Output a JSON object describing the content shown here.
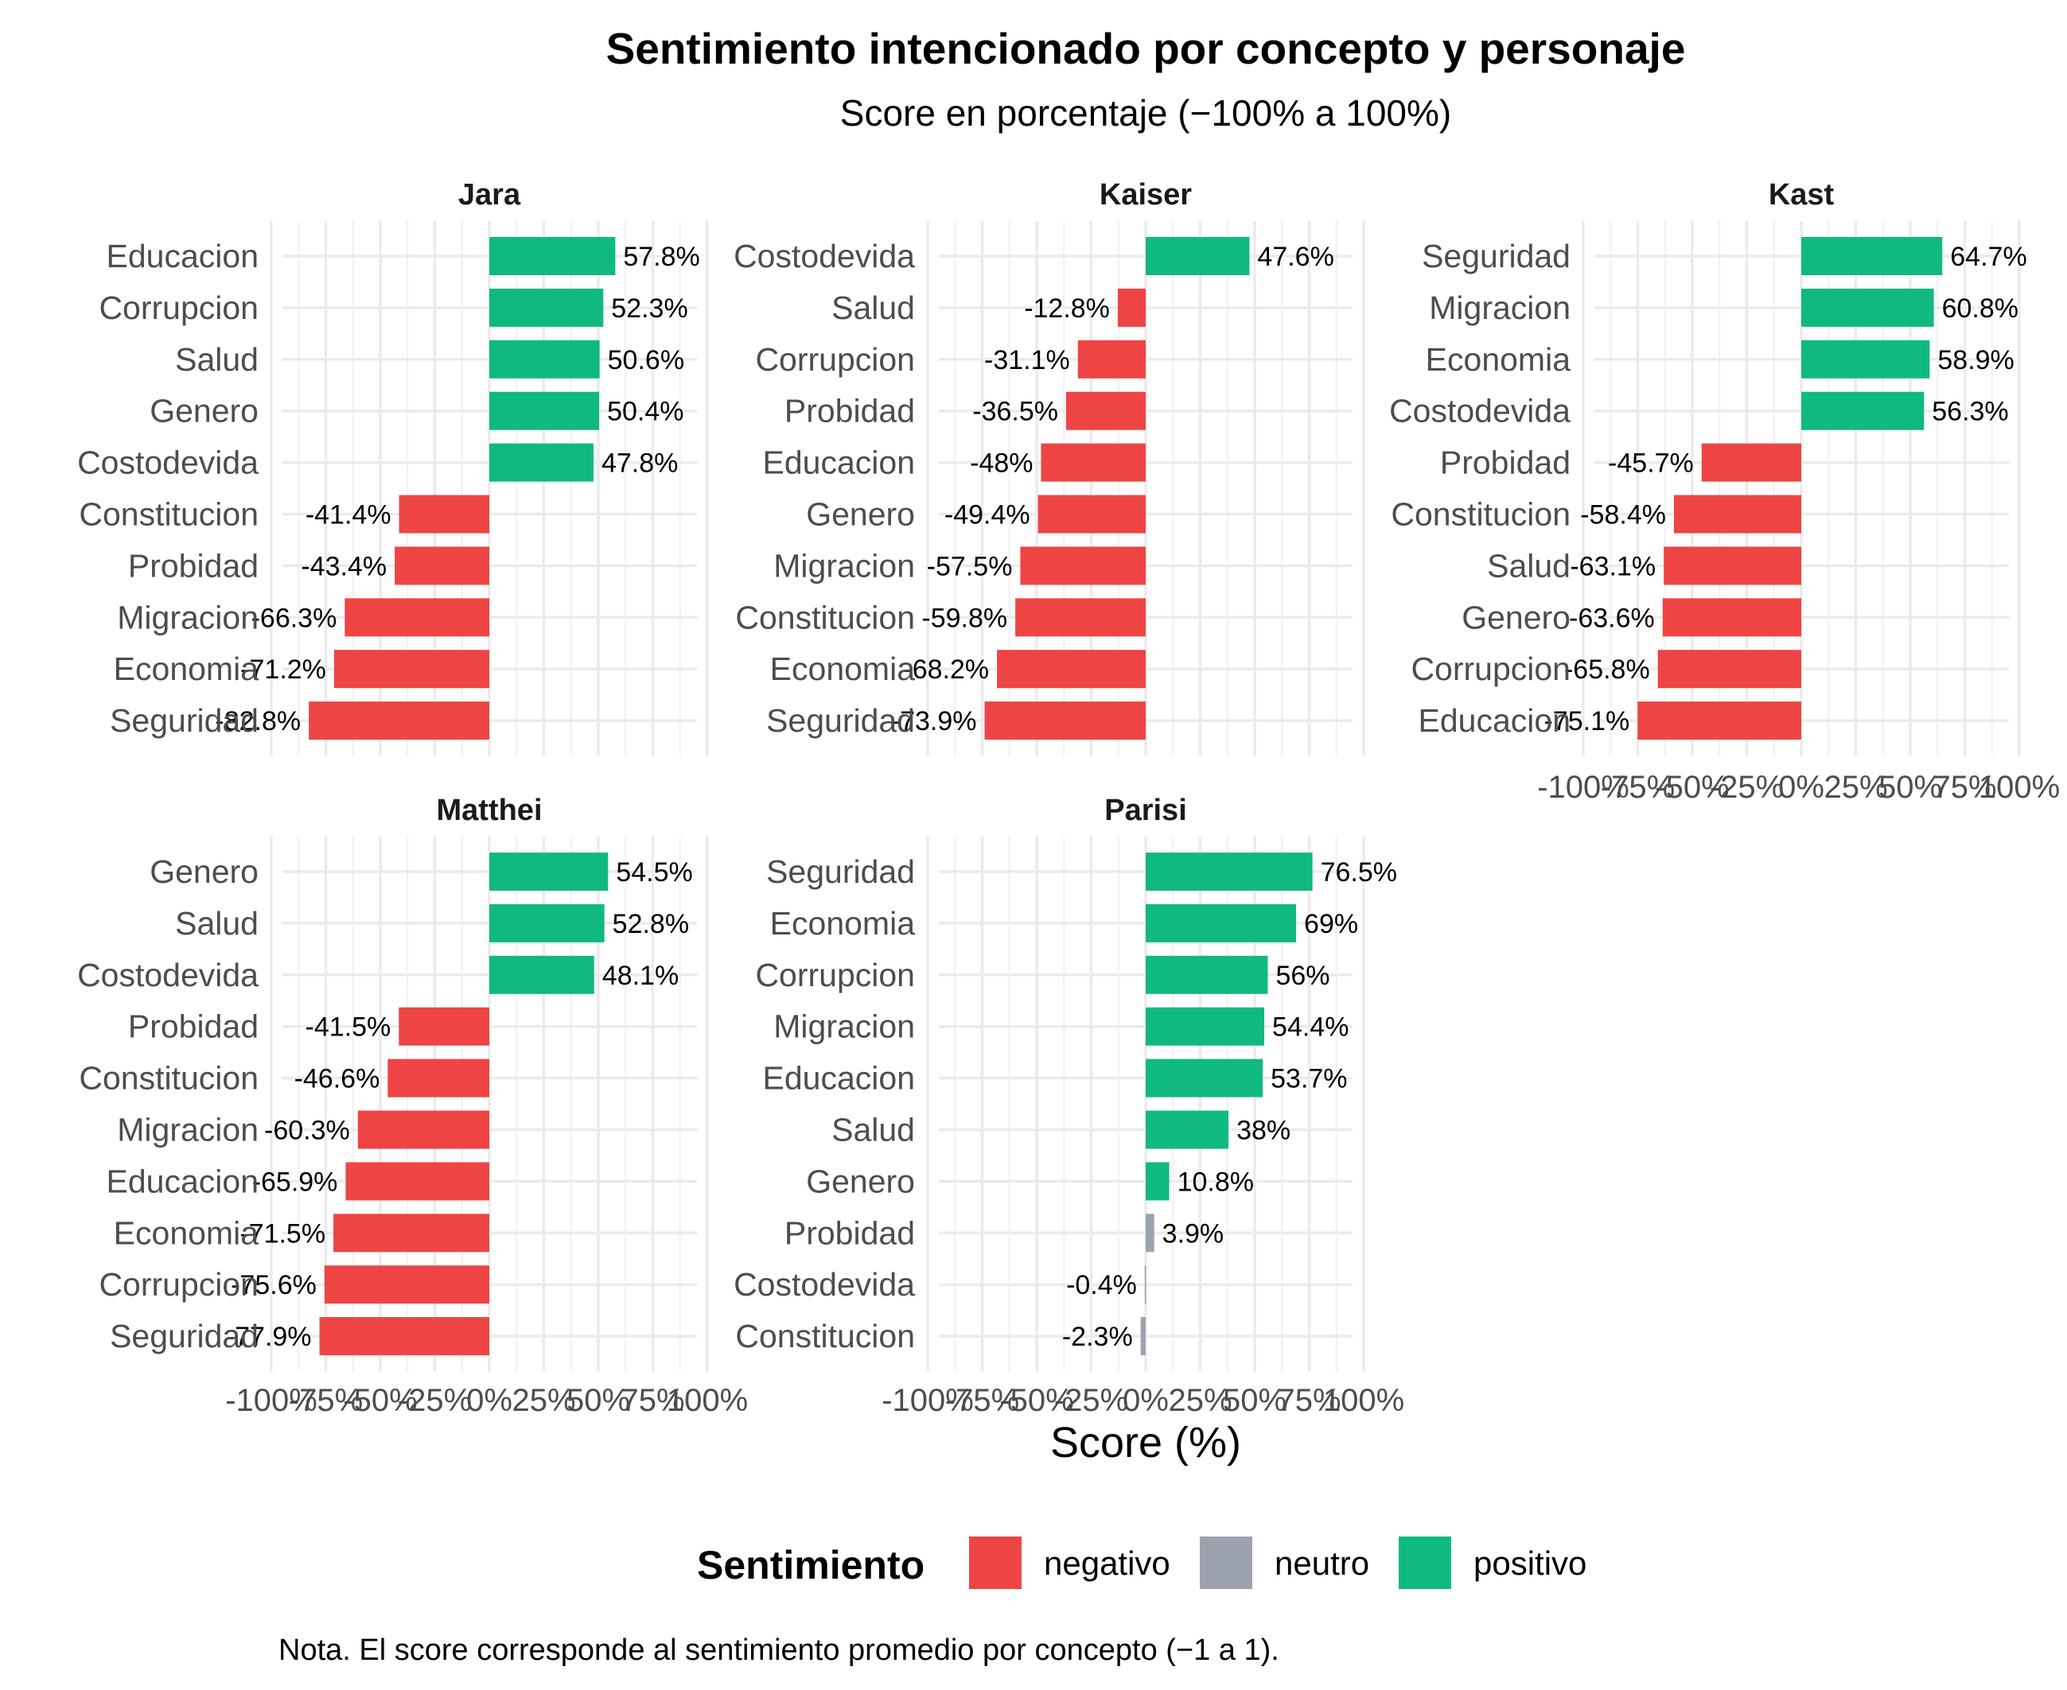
{
  "chart_data": {
    "type": "bar",
    "orientation": "horizontal",
    "title": "Sentimiento intencionado por concepto y personaje",
    "subtitle": "Score en porcentaje (−100% a 100%)",
    "xlabel": "Score (%)",
    "ylabel": "",
    "xlim": [
      -100,
      100
    ],
    "x_ticks": [
      -100,
      -75,
      -50,
      -25,
      0,
      25,
      50,
      75,
      100
    ],
    "x_tick_labels": [
      "-100%",
      "-75%",
      "-50%",
      "-25%",
      "0%",
      "25%",
      "50%",
      "75%",
      "100%"
    ],
    "grid": true,
    "legend": {
      "title": "Sentimiento",
      "position": "bottom",
      "items": [
        {
          "key": "negativo",
          "label": "negativo",
          "color": "#EF4444"
        },
        {
          "key": "neutro",
          "label": "neutro",
          "color": "#9CA3AF"
        },
        {
          "key": "positivo",
          "label": "positivo",
          "color": "#10B981"
        }
      ]
    },
    "caption": "Nota. El score corresponde al sentimiento promedio por concepto (−1 a 1).",
    "panels": [
      {
        "name": "Jara",
        "bars": [
          {
            "category": "Educacion",
            "value": 57.8,
            "label": "57.8%",
            "sentiment": "positivo"
          },
          {
            "category": "Corrupcion",
            "value": 52.3,
            "label": "52.3%",
            "sentiment": "positivo"
          },
          {
            "category": "Salud",
            "value": 50.6,
            "label": "50.6%",
            "sentiment": "positivo"
          },
          {
            "category": "Genero",
            "value": 50.4,
            "label": "50.4%",
            "sentiment": "positivo"
          },
          {
            "category": "Costodevida",
            "value": 47.8,
            "label": "47.8%",
            "sentiment": "positivo"
          },
          {
            "category": "Constitucion",
            "value": -41.4,
            "label": "-41.4%",
            "sentiment": "negativo"
          },
          {
            "category": "Probidad",
            "value": -43.4,
            "label": "-43.4%",
            "sentiment": "negativo"
          },
          {
            "category": "Migracion",
            "value": -66.3,
            "label": "-66.3%",
            "sentiment": "negativo"
          },
          {
            "category": "Economia",
            "value": -71.2,
            "label": "-71.2%",
            "sentiment": "negativo"
          },
          {
            "category": "Seguridad",
            "value": -82.8,
            "label": "-82.8%",
            "sentiment": "negativo"
          }
        ]
      },
      {
        "name": "Kaiser",
        "bars": [
          {
            "category": "Costodevida",
            "value": 47.6,
            "label": "47.6%",
            "sentiment": "positivo"
          },
          {
            "category": "Salud",
            "value": -12.8,
            "label": "-12.8%",
            "sentiment": "negativo"
          },
          {
            "category": "Corrupcion",
            "value": -31.1,
            "label": "-31.1%",
            "sentiment": "negativo"
          },
          {
            "category": "Probidad",
            "value": -36.5,
            "label": "-36.5%",
            "sentiment": "negativo"
          },
          {
            "category": "Educacion",
            "value": -48,
            "label": "-48%",
            "sentiment": "negativo"
          },
          {
            "category": "Genero",
            "value": -49.4,
            "label": "-49.4%",
            "sentiment": "negativo"
          },
          {
            "category": "Migracion",
            "value": -57.5,
            "label": "-57.5%",
            "sentiment": "negativo"
          },
          {
            "category": "Constitucion",
            "value": -59.8,
            "label": "-59.8%",
            "sentiment": "negativo"
          },
          {
            "category": "Economia",
            "value": -68.2,
            "label": "-68.2%",
            "sentiment": "negativo"
          },
          {
            "category": "Seguridad",
            "value": -73.9,
            "label": "-73.9%",
            "sentiment": "negativo"
          }
        ]
      },
      {
        "name": "Kast",
        "bars": [
          {
            "category": "Seguridad",
            "value": 64.7,
            "label": "64.7%",
            "sentiment": "positivo"
          },
          {
            "category": "Migracion",
            "value": 60.8,
            "label": "60.8%",
            "sentiment": "positivo"
          },
          {
            "category": "Economia",
            "value": 58.9,
            "label": "58.9%",
            "sentiment": "positivo"
          },
          {
            "category": "Costodevida",
            "value": 56.3,
            "label": "56.3%",
            "sentiment": "positivo"
          },
          {
            "category": "Probidad",
            "value": -45.7,
            "label": "-45.7%",
            "sentiment": "negativo"
          },
          {
            "category": "Constitucion",
            "value": -58.4,
            "label": "-58.4%",
            "sentiment": "negativo"
          },
          {
            "category": "Salud",
            "value": -63.1,
            "label": "-63.1%",
            "sentiment": "negativo"
          },
          {
            "category": "Genero",
            "value": -63.6,
            "label": "-63.6%",
            "sentiment": "negativo"
          },
          {
            "category": "Corrupcion",
            "value": -65.8,
            "label": "-65.8%",
            "sentiment": "negativo"
          },
          {
            "category": "Educacion",
            "value": -75.1,
            "label": "-75.1%",
            "sentiment": "negativo"
          }
        ]
      },
      {
        "name": "Matthei",
        "bars": [
          {
            "category": "Genero",
            "value": 54.5,
            "label": "54.5%",
            "sentiment": "positivo"
          },
          {
            "category": "Salud",
            "value": 52.8,
            "label": "52.8%",
            "sentiment": "positivo"
          },
          {
            "category": "Costodevida",
            "value": 48.1,
            "label": "48.1%",
            "sentiment": "positivo"
          },
          {
            "category": "Probidad",
            "value": -41.5,
            "label": "-41.5%",
            "sentiment": "negativo"
          },
          {
            "category": "Constitucion",
            "value": -46.6,
            "label": "-46.6%",
            "sentiment": "negativo"
          },
          {
            "category": "Migracion",
            "value": -60.3,
            "label": "-60.3%",
            "sentiment": "negativo"
          },
          {
            "category": "Educacion",
            "value": -65.9,
            "label": "-65.9%",
            "sentiment": "negativo"
          },
          {
            "category": "Economia",
            "value": -71.5,
            "label": "-71.5%",
            "sentiment": "negativo"
          },
          {
            "category": "Corrupcion",
            "value": -75.6,
            "label": "-75.6%",
            "sentiment": "negativo"
          },
          {
            "category": "Seguridad",
            "value": -77.9,
            "label": "-77.9%",
            "sentiment": "negativo"
          }
        ]
      },
      {
        "name": "Parisi",
        "bars": [
          {
            "category": "Seguridad",
            "value": 76.5,
            "label": "76.5%",
            "sentiment": "positivo"
          },
          {
            "category": "Economia",
            "value": 69,
            "label": "69%",
            "sentiment": "positivo"
          },
          {
            "category": "Corrupcion",
            "value": 56,
            "label": "56%",
            "sentiment": "positivo"
          },
          {
            "category": "Migracion",
            "value": 54.4,
            "label": "54.4%",
            "sentiment": "positivo"
          },
          {
            "category": "Educacion",
            "value": 53.7,
            "label": "53.7%",
            "sentiment": "positivo"
          },
          {
            "category": "Salud",
            "value": 38,
            "label": "38%",
            "sentiment": "positivo"
          },
          {
            "category": "Genero",
            "value": 10.8,
            "label": "10.8%",
            "sentiment": "positivo"
          },
          {
            "category": "Probidad",
            "value": 3.9,
            "label": "3.9%",
            "sentiment": "neutro"
          },
          {
            "category": "Costodevida",
            "value": -0.4,
            "label": "-0.4%",
            "sentiment": "neutro"
          },
          {
            "category": "Constitucion",
            "value": -2.3,
            "label": "-2.3%",
            "sentiment": "neutro"
          }
        ]
      }
    ]
  }
}
